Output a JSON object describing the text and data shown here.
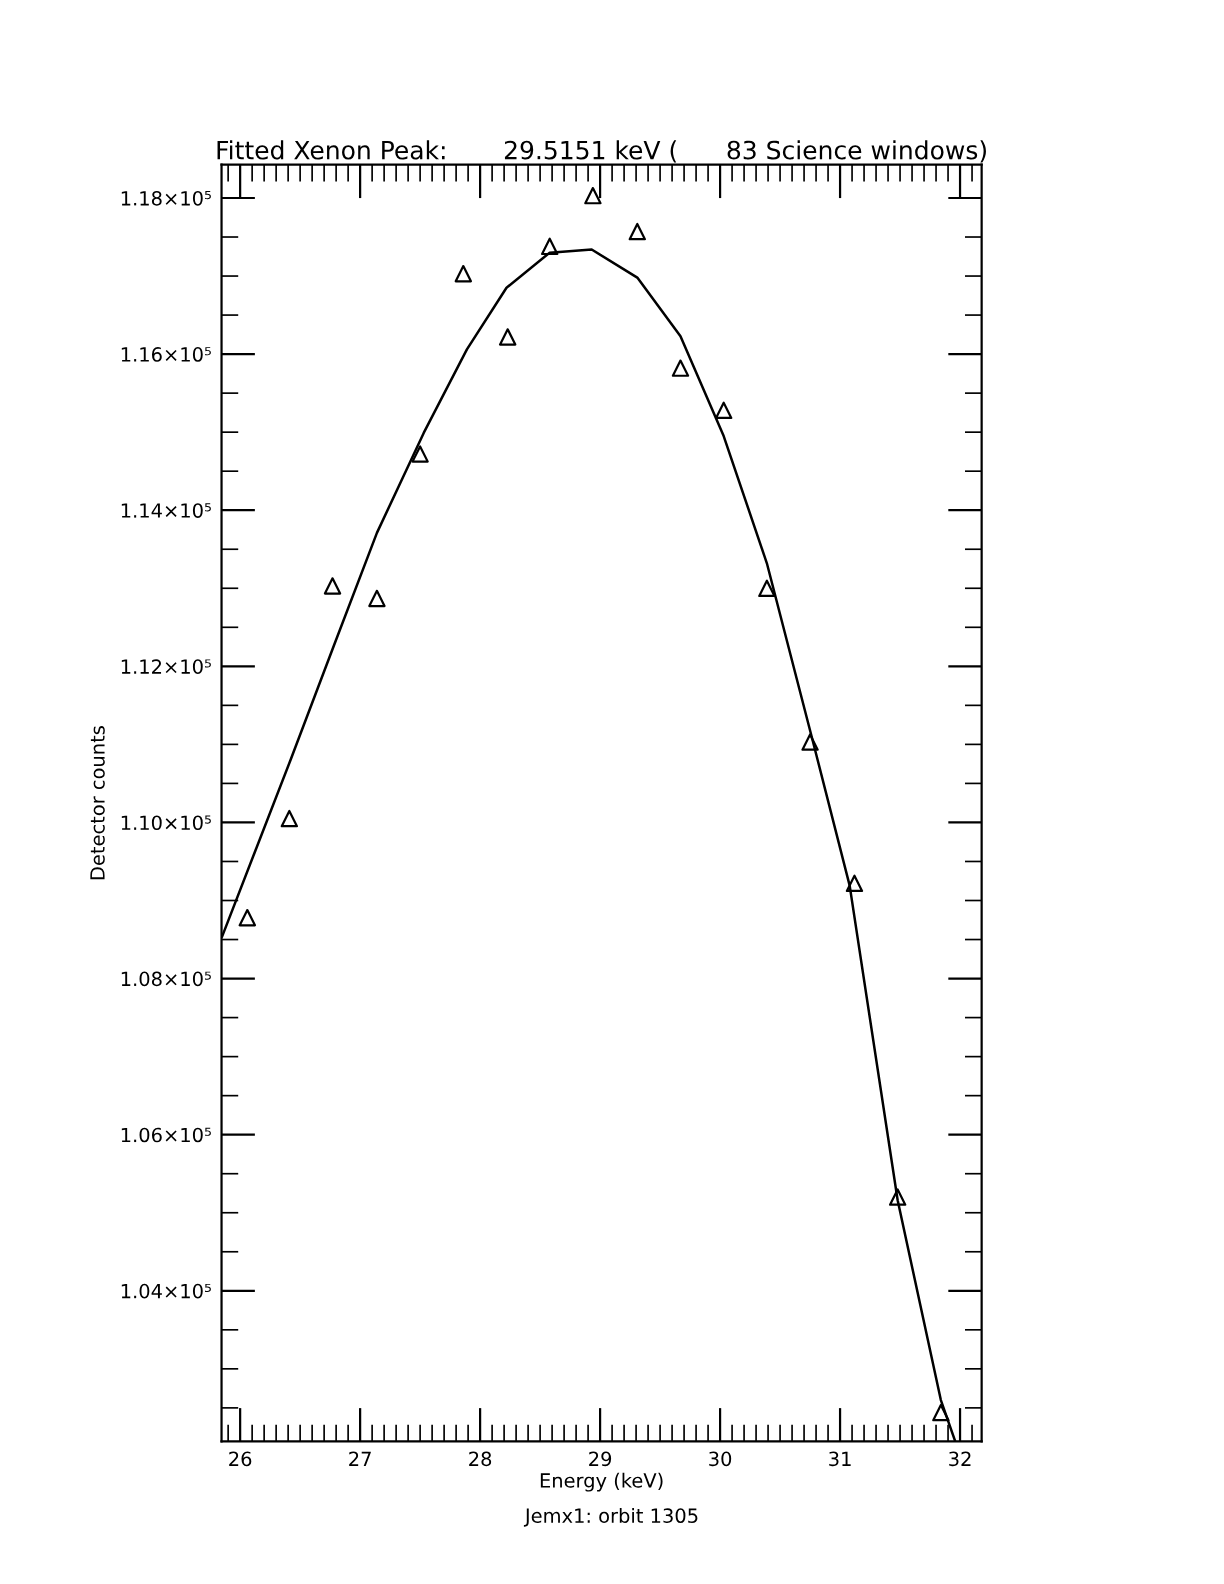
{
  "chart_data": {
    "type": "scatter",
    "title": "Fitted Xenon Peak:       29.5151 keV (      83 Science windows)",
    "xlabel": "Energy (keV)",
    "ylabel": "Detector counts",
    "annotations": [
      "Jemx1: orbit 1305"
    ],
    "series": [
      {
        "marker": "triangle",
        "color": "#000000",
        "x": [
          26.06,
          26.41,
          26.77,
          27.14,
          27.5,
          27.86,
          28.23,
          28.58,
          28.94,
          29.31,
          29.67,
          30.03,
          30.39,
          30.75,
          31.12,
          31.48,
          31.84
        ],
        "values": [
          108780,
          110050,
          113030,
          112870,
          114720,
          117030,
          116220,
          117380,
          118030,
          117570,
          115820,
          115280,
          113000,
          111030,
          109220,
          105200,
          102440
        ]
      },
      {
        "type": "line",
        "marker": "none",
        "line_style": "solid",
        "color": "#000000",
        "x": [
          25.85,
          26.42,
          26.78,
          27.14,
          27.53,
          27.89,
          28.22,
          28.58,
          28.93,
          29.31,
          29.67,
          30.03,
          30.39,
          30.77,
          31.08,
          31.48,
          31.84,
          31.96
        ],
        "values": [
          108540,
          110800,
          112260,
          113710,
          114990,
          116060,
          116850,
          117300,
          117340,
          116980,
          116230,
          114950,
          113320,
          111060,
          109190,
          105160,
          102600,
          102070
        ]
      }
    ],
    "xlim": [
      25.845,
      32.18
    ],
    "xticks": [
      26,
      27,
      28,
      29,
      30,
      31,
      32
    ],
    "ylim": [
      102070,
      118426
    ],
    "yticks": [
      {
        "value": 104000,
        "label": "1.04×10⁵"
      },
      {
        "value": 106000,
        "label": "1.06×10⁵"
      },
      {
        "value": 108000,
        "label": "1.08×10⁵"
      },
      {
        "value": 110000,
        "label": "1.10×10⁵"
      },
      {
        "value": 112000,
        "label": "1.12×10⁵"
      },
      {
        "value": 114000,
        "label": "1.14×10⁵"
      },
      {
        "value": 116000,
        "label": "1.16×10⁵"
      },
      {
        "value": 118000,
        "label": "1.18×10⁵"
      }
    ],
    "grid": false,
    "legend": false
  }
}
